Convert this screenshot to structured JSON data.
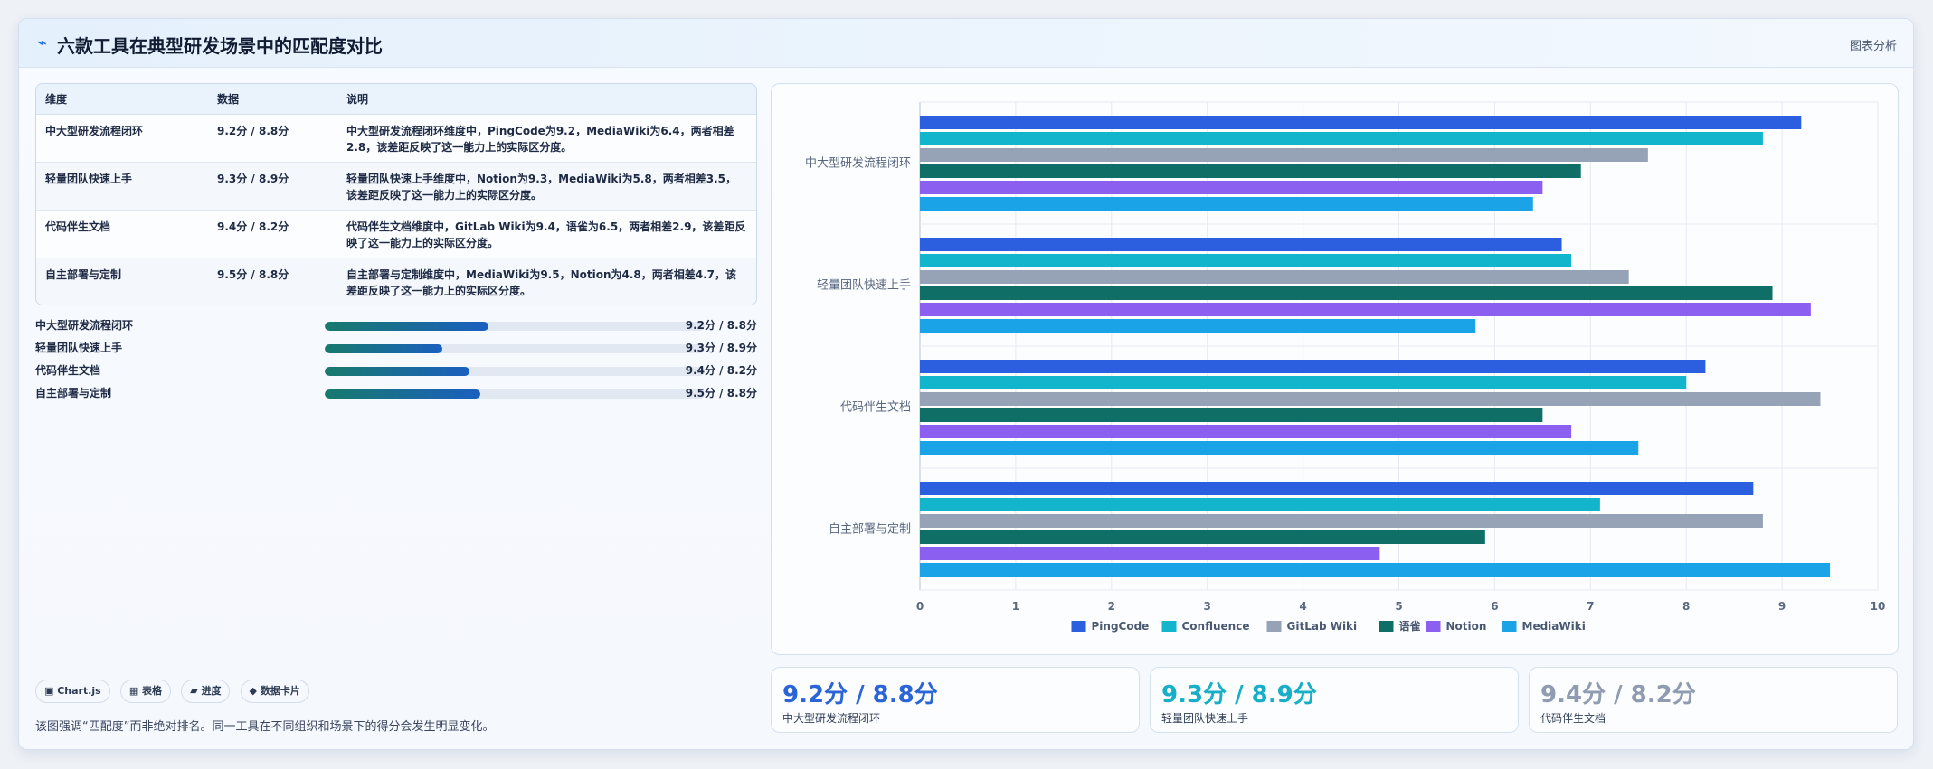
{
  "header": {
    "icon": "spark-icon",
    "title": "六款工具在典型研发场景中的匹配度对比",
    "link": "图表分析"
  },
  "table": {
    "headers": [
      "维度",
      "数据",
      "说明"
    ],
    "rows": [
      {
        "dim": "中大型研发流程闭环",
        "data": "9.2分 / 8.8分",
        "desc": "中大型研发流程闭环维度中，PingCode为9.2，MediaWiki为6.4，两者相差2.8，该差距反映了这一能力上的实际区分度。"
      },
      {
        "dim": "轻量团队快速上手",
        "data": "9.3分 / 8.9分",
        "desc": "轻量团队快速上手维度中，Notion为9.3，MediaWiki为5.8，两者相差3.5，该差距反映了这一能力上的实际区分度。"
      },
      {
        "dim": "代码伴生文档",
        "data": "9.4分 / 8.2分",
        "desc": "代码伴生文档维度中，GitLab Wiki为9.4，语雀为6.5，两者相差2.9，该差距反映了这一能力上的实际区分度。"
      },
      {
        "dim": "自主部署与定制",
        "data": "9.5分 / 8.8分",
        "desc": "自主部署与定制维度中，MediaWiki为9.5，Notion为4.8，两者相差4.7，该差距反映了这一能力上的实际区分度。"
      }
    ]
  },
  "progress": [
    {
      "label": "中大型研发流程闭环",
      "value": "9.2分 / 8.8分",
      "fraction": 0.43
    },
    {
      "label": "轻量团队快速上手",
      "value": "9.3分 / 8.9分",
      "fraction": 0.31
    },
    {
      "label": "代码伴生文档",
      "value": "9.4分 / 8.2分",
      "fraction": 0.38
    },
    {
      "label": "自主部署与定制",
      "value": "9.5分 / 8.8分",
      "fraction": 0.41
    }
  ],
  "chips": [
    {
      "icon": "chart-icon",
      "label": "▣ Chart.js"
    },
    {
      "icon": "table-icon",
      "label": "▦ 表格"
    },
    {
      "icon": "progress-icon",
      "label": "▰ 进度"
    },
    {
      "icon": "card-icon",
      "label": "◆ 数据卡片"
    }
  ],
  "note": "该图强调“匹配度”而非绝对排名。同一工具在不同组织和场景下的得分会发生明显变化。",
  "stats": [
    {
      "value": "9.2分 / 8.8分",
      "label": "中大型研发流程闭环",
      "color": "#2b64d6"
    },
    {
      "value": "9.3分 / 8.9分",
      "label": "轻量团队快速上手",
      "color": "#17aec7"
    },
    {
      "value": "9.4分 / 8.2分",
      "label": "代码伴生文档",
      "color": "#8f9bb0"
    }
  ],
  "chart_data": {
    "type": "bar",
    "orientation": "horizontal",
    "categories": [
      "中大型研发流程闭环",
      "轻量团队快速上手",
      "代码伴生文档",
      "自主部署与定制"
    ],
    "series": [
      {
        "name": "PingCode",
        "color": "#2b5fe0",
        "values": [
          9.2,
          6.7,
          8.2,
          8.7
        ]
      },
      {
        "name": "Confluence",
        "color": "#13b5cc",
        "values": [
          8.8,
          6.8,
          8.0,
          7.1
        ]
      },
      {
        "name": "GitLab Wiki",
        "color": "#96a2b6",
        "values": [
          7.6,
          7.4,
          9.4,
          8.8
        ]
      },
      {
        "name": "语雀",
        "color": "#0f6e66",
        "values": [
          6.9,
          8.9,
          6.5,
          5.9
        ]
      },
      {
        "name": "Notion",
        "color": "#8b5ff0",
        "values": [
          6.5,
          9.3,
          6.8,
          4.8
        ]
      },
      {
        "name": "MediaWiki",
        "color": "#1aa3e6",
        "values": [
          6.4,
          5.8,
          7.5,
          9.5
        ]
      }
    ],
    "xlim": [
      0,
      10
    ],
    "xticks": [
      0,
      1,
      2,
      3,
      4,
      5,
      6,
      7,
      8,
      9,
      10
    ],
    "grid": true,
    "legend": "bottom",
    "title": "",
    "xlabel": "",
    "ylabel": ""
  }
}
